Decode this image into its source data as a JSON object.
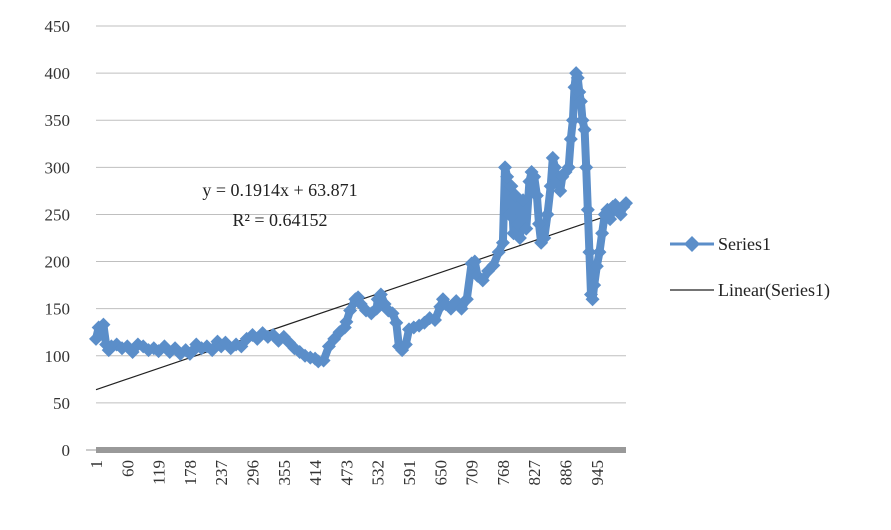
{
  "chart_data": {
    "type": "line",
    "title": "",
    "xlabel": "",
    "ylabel": "",
    "ylim": [
      0,
      450
    ],
    "yticks": [
      "0",
      "50",
      "100",
      "150",
      "200",
      "250",
      "300",
      "350",
      "400",
      "450"
    ],
    "xlim": [
      1,
      1000
    ],
    "xticks": [
      "1",
      "60",
      "119",
      "178",
      "237",
      "296",
      "355",
      "414",
      "473",
      "532",
      "591",
      "650",
      "709",
      "768",
      "827",
      "886",
      "945"
    ],
    "grid": "horizontal",
    "legend_position": "right",
    "colors": {
      "series": "#5b8ec9",
      "trend": "#222222",
      "grid": "#bfbfbf",
      "axis": "#999999"
    },
    "series": [
      {
        "name": "Series1",
        "marker": "diamond",
        "points": [
          [
            1,
            118
          ],
          [
            6,
            130
          ],
          [
            10,
            125
          ],
          [
            15,
            133
          ],
          [
            20,
            112
          ],
          [
            25,
            106
          ],
          [
            30,
            110
          ],
          [
            40,
            112
          ],
          [
            50,
            108
          ],
          [
            60,
            110
          ],
          [
            70,
            104
          ],
          [
            80,
            112
          ],
          [
            90,
            110
          ],
          [
            100,
            106
          ],
          [
            110,
            108
          ],
          [
            119,
            105
          ],
          [
            130,
            110
          ],
          [
            140,
            104
          ],
          [
            150,
            108
          ],
          [
            160,
            102
          ],
          [
            170,
            106
          ],
          [
            178,
            102
          ],
          [
            185,
            106
          ],
          [
            190,
            112
          ],
          [
            200,
            108
          ],
          [
            210,
            110
          ],
          [
            220,
            106
          ],
          [
            230,
            115
          ],
          [
            237,
            110
          ],
          [
            245,
            114
          ],
          [
            255,
            108
          ],
          [
            265,
            112
          ],
          [
            275,
            110
          ],
          [
            285,
            118
          ],
          [
            296,
            122
          ],
          [
            305,
            118
          ],
          [
            315,
            124
          ],
          [
            325,
            120
          ],
          [
            335,
            122
          ],
          [
            345,
            116
          ],
          [
            355,
            120
          ],
          [
            365,
            114
          ],
          [
            375,
            108
          ],
          [
            385,
            104
          ],
          [
            395,
            100
          ],
          [
            405,
            98
          ],
          [
            414,
            97
          ],
          [
            420,
            94
          ],
          [
            430,
            95
          ],
          [
            440,
            110
          ],
          [
            450,
            118
          ],
          [
            460,
            125
          ],
          [
            470,
            130
          ],
          [
            473,
            136
          ],
          [
            480,
            148
          ],
          [
            490,
            160
          ],
          [
            495,
            162
          ],
          [
            500,
            155
          ],
          [
            510,
            148
          ],
          [
            520,
            145
          ],
          [
            530,
            150
          ],
          [
            532,
            160
          ],
          [
            538,
            165
          ],
          [
            545,
            155
          ],
          [
            552,
            148
          ],
          [
            560,
            145
          ],
          [
            567,
            135
          ],
          [
            572,
            110
          ],
          [
            578,
            106
          ],
          [
            585,
            112
          ],
          [
            591,
            128
          ],
          [
            600,
            130
          ],
          [
            610,
            132
          ],
          [
            620,
            135
          ],
          [
            630,
            140
          ],
          [
            640,
            138
          ],
          [
            650,
            152
          ],
          [
            655,
            160
          ],
          [
            660,
            155
          ],
          [
            670,
            150
          ],
          [
            680,
            158
          ],
          [
            690,
            150
          ],
          [
            700,
            160
          ],
          [
            709,
            198
          ],
          [
            715,
            200
          ],
          [
            720,
            185
          ],
          [
            730,
            180
          ],
          [
            740,
            190
          ],
          [
            750,
            196
          ],
          [
            760,
            210
          ],
          [
            768,
            220
          ],
          [
            772,
            300
          ],
          [
            776,
            290
          ],
          [
            780,
            250
          ],
          [
            784,
            280
          ],
          [
            788,
            230
          ],
          [
            792,
            270
          ],
          [
            796,
            240
          ],
          [
            800,
            225
          ],
          [
            806,
            265
          ],
          [
            812,
            235
          ],
          [
            818,
            285
          ],
          [
            822,
            295
          ],
          [
            827,
            290
          ],
          [
            832,
            270
          ],
          [
            836,
            240
          ],
          [
            840,
            220
          ],
          [
            846,
            225
          ],
          [
            852,
            250
          ],
          [
            858,
            280
          ],
          [
            862,
            310
          ],
          [
            866,
            300
          ],
          [
            870,
            285
          ],
          [
            876,
            275
          ],
          [
            880,
            290
          ],
          [
            886,
            295
          ],
          [
            892,
            300
          ],
          [
            896,
            330
          ],
          [
            900,
            350
          ],
          [
            903,
            385
          ],
          [
            906,
            400
          ],
          [
            909,
            395
          ],
          [
            912,
            380
          ],
          [
            915,
            370
          ],
          [
            918,
            350
          ],
          [
            922,
            340
          ],
          [
            925,
            300
          ],
          [
            928,
            255
          ],
          [
            931,
            210
          ],
          [
            934,
            165
          ],
          [
            937,
            160
          ],
          [
            940,
            175
          ],
          [
            945,
            195
          ],
          [
            950,
            210
          ],
          [
            955,
            230
          ],
          [
            960,
            250
          ],
          [
            965,
            255
          ],
          [
            970,
            245
          ],
          [
            975,
            258
          ],
          [
            980,
            260
          ],
          [
            985,
            255
          ],
          [
            990,
            250
          ],
          [
            995,
            258
          ],
          [
            1000,
            262
          ]
        ]
      }
    ],
    "trendline": {
      "name": "Linear(Series1)",
      "slope": 0.1914,
      "intercept": 63.871,
      "equation": "y = 0.1914x + 63.871",
      "r_squared": "R² = 0.64152"
    }
  }
}
